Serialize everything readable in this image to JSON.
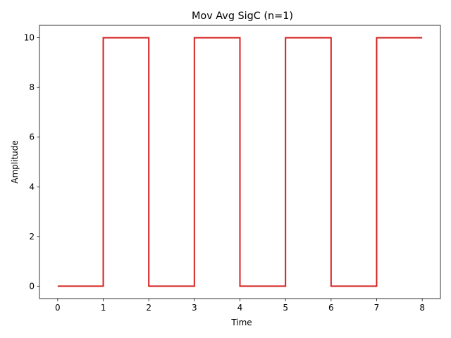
{
  "chart_data": {
    "type": "line",
    "title": "Mov Avg SigC (n=1)",
    "xlabel": "Time",
    "ylabel": "Amplitude",
    "xlim": [
      -0.4,
      8.4
    ],
    "ylim": [
      -0.5,
      10.5
    ],
    "xticks": [
      0,
      1,
      2,
      3,
      4,
      5,
      6,
      7,
      8
    ],
    "yticks": [
      0,
      2,
      4,
      6,
      8,
      10
    ],
    "grid": false,
    "series": [
      {
        "color": "#d62020",
        "step": "post",
        "x": [
          0,
          1,
          2,
          3,
          4,
          5,
          6,
          7,
          8
        ],
        "values": [
          0,
          10,
          0,
          10,
          0,
          10,
          0,
          10,
          10
        ]
      }
    ]
  }
}
